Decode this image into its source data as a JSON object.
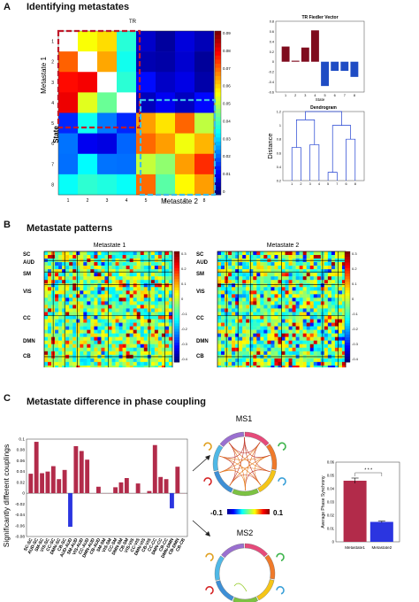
{
  "panel_a": {
    "letter": "A",
    "title": "Identifying metastates",
    "tr_label": "TR",
    "metastate1_label": "Metastate 1",
    "metastate2_label": "Metastate 2",
    "state_label": "State",
    "row_labels": [
      "1",
      "2",
      "3",
      "4",
      "5",
      "6",
      "7",
      "8"
    ],
    "col_labels": [
      "1",
      "2",
      "3",
      "4",
      "5",
      "6",
      "7",
      "8"
    ],
    "colorbar_ticks": [
      "0.09",
      "0.08",
      "0.07",
      "0.06",
      "0.05",
      "0.04",
      "0.03",
      "0.02",
      "0.01",
      "0"
    ]
  },
  "panel_b": {
    "letter": "B",
    "title": "Metastate patterns",
    "left_title": "Metastate 1",
    "right_title": "Metastate 2",
    "network_labels": [
      "SC",
      "AUD",
      "SM",
      "VIS",
      "CC",
      "DMN",
      "CB"
    ],
    "colorbar_ticks": [
      "0.3",
      "0.2",
      "0.1",
      "0",
      "-0.1",
      "-0.2",
      "-0.3",
      "-0.4"
    ],
    "colorbar_ticks_right": [
      "0.3",
      "0.2",
      "0.1",
      "0",
      "-0.1",
      "-0.2",
      "-0.3",
      "-0.4"
    ]
  },
  "panel_c": {
    "letter": "C",
    "title": "Metastate difference in phase coupling",
    "ylabel": "Significantly different couplings",
    "ms1_label": "MS1",
    "ms2_label": "MS2",
    "scale_min": "-0.1",
    "scale_max": "0.1",
    "avg_ylabel": "Average Phase Synchrony",
    "significance": "* * *"
  },
  "chart_data": [
    {
      "type": "bar",
      "title": "TR Fiedler Vector",
      "xlabel": "State",
      "ylabel": "",
      "categories": [
        "1",
        "2",
        "3",
        "4",
        "5",
        "6",
        "7",
        "8"
      ],
      "values": [
        0.3,
        0.02,
        0.28,
        0.62,
        -0.48,
        -0.18,
        -0.18,
        -0.3
      ],
      "ylim": [
        -0.6,
        0.8
      ],
      "yticks": [
        "0.8",
        "0.6",
        "0.4",
        "0.2",
        "0",
        "-0.2",
        "-0.4",
        "-0.6"
      ],
      "colors": {
        "positive": "#7f0c1e",
        "negative": "#1f4cc4"
      }
    },
    {
      "type": "dendrogram",
      "title": "Dendrogram",
      "xlabel": "State",
      "ylabel": "Distance",
      "leaf_order": [
        "1",
        "2",
        "3",
        "4",
        "5",
        "7",
        "6",
        "8"
      ],
      "ylim": [
        0.2,
        1.2
      ],
      "yticks": [
        "1.2",
        "1",
        "0.8",
        "0.6",
        "0.4",
        "0.2"
      ],
      "merges": [
        {
          "left": "5",
          "right": "7",
          "height": 0.32
        },
        {
          "left": "1",
          "right": "2",
          "height": 0.68
        },
        {
          "left": "3",
          "right": "4",
          "height": 0.72
        },
        {
          "left": "6",
          "right": "8",
          "height": 0.8
        },
        {
          "left": "5,7",
          "right": "6,8",
          "height": 1.0
        },
        {
          "left": "1,2",
          "right": "3,4",
          "height": 1.08
        },
        {
          "left": "1-4",
          "right": "5-8",
          "height": 1.2
        }
      ]
    },
    {
      "type": "bar",
      "title": "",
      "xlabel": "",
      "ylabel": "Significantly different couplings",
      "categories": [
        "SC-SC",
        "AUD-SC",
        "SM-SC",
        "VIS-SC",
        "CC-SC",
        "DMN-SC",
        "CB-SC",
        "AUD-AUD",
        "SM-AUD",
        "VIS-AUD",
        "CC-AUD",
        "DMN-AUD",
        "CB-AUD",
        "SM-SM",
        "VIS-SM",
        "CC-SM",
        "DMN-SM",
        "CB-SM",
        "VIS-VIS",
        "CC-VIS",
        "DMN-VIS",
        "CB-VIS",
        "CC-CC",
        "DMN-CC",
        "CB-CC",
        "DMN-DMN",
        "CB-DMN",
        "CB-CB"
      ],
      "values": [
        0.036,
        0.095,
        0.037,
        0.04,
        0.05,
        0.026,
        0.043,
        -0.062,
        0.087,
        0.078,
        0.062,
        0.0,
        0.012,
        0.0,
        0.0,
        0.011,
        0.02,
        0.028,
        0.0,
        0.018,
        0.0,
        0.004,
        0.089,
        0.03,
        0.026,
        -0.028,
        0.049,
        0.0
      ],
      "ylim": [
        -0.08,
        0.1
      ],
      "yticks": [
        "0.1",
        "0.08",
        "0.06",
        "0.04",
        "0.02",
        "0",
        "-0.02",
        "-0.04",
        "-0.06",
        "-0.08"
      ],
      "colors": {
        "positive": "#b22b4a",
        "negative": "#2b35e0"
      }
    },
    {
      "type": "bar",
      "title": "",
      "xlabel": "",
      "ylabel": "Average Phase Synchrony",
      "categories": [
        "Metastate1",
        "Metastate2"
      ],
      "values": [
        0.046,
        0.015
      ],
      "errors": [
        0.002,
        0.0006
      ],
      "ylim": [
        0,
        0.06
      ],
      "yticks": [
        "0.06",
        "0.05",
        "0.04",
        "0.03",
        "0.02",
        "0.01",
        "0"
      ],
      "colors": {
        "Metastate1": "#b22b4a",
        "Metastate2": "#2b35e0"
      }
    }
  ]
}
